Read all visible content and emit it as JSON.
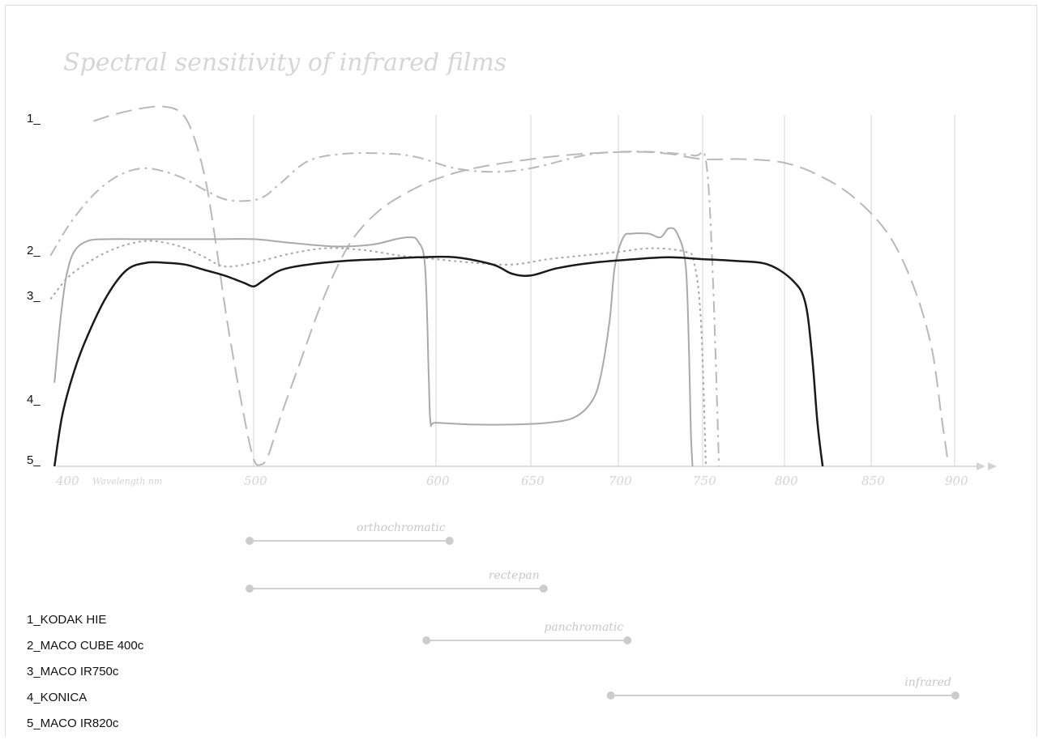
{
  "chart_data": {
    "type": "line",
    "title": "Spectral sensitivity of infrared films",
    "xlabel": "Wavelength nm",
    "x_ticks": [
      400,
      500,
      600,
      650,
      700,
      750,
      800,
      850,
      900
    ],
    "xlim": [
      400,
      925
    ],
    "ylim": [
      0,
      100
    ],
    "y_axis_labels": [
      "1_",
      "2_",
      "3_",
      "4_",
      "5_"
    ],
    "grid": true,
    "series": [
      {
        "name": "KODAK HIE",
        "key": "1",
        "style": "long-dash",
        "color": "#b9b9b9",
        "x": [
          418,
          430,
          443,
          453,
          461,
          466,
          471,
          476,
          481,
          487,
          495,
          500,
          504,
          508,
          515,
          525,
          535,
          545,
          555,
          568,
          583,
          600,
          620,
          650,
          680,
          710,
          730,
          750,
          775,
          800,
          820,
          840,
          860,
          875,
          886,
          892,
          896
        ],
        "y": [
          95,
          97,
          98.5,
          99,
          98,
          95,
          88,
          77,
          60,
          38,
          14,
          2,
          0.5,
          3,
          14,
          28,
          42,
          54,
          63,
          70,
          75,
          79,
          82,
          84.5,
          86,
          86.5,
          86,
          84.5,
          84.5,
          83.5,
          80,
          74,
          64,
          50,
          33,
          14,
          1
        ]
      },
      {
        "name": "MACO CUBE 400c",
        "key": "2",
        "style": "dash-dot",
        "color": "#b9b9b9",
        "x": [
          396,
          405,
          415,
          425,
          435,
          445,
          455,
          465,
          475,
          485,
          495,
          505,
          515,
          530,
          550,
          575,
          590,
          610,
          630,
          650,
          680,
          700,
          720,
          745,
          752,
          756,
          760
        ],
        "y": [
          58,
          66,
          73,
          78,
          81,
          82,
          81,
          79,
          76,
          73.5,
          73,
          74,
          78,
          84,
          86,
          86,
          85,
          82,
          81,
          82,
          85.5,
          86.5,
          86.5,
          85.5,
          84,
          55,
          0
        ]
      },
      {
        "name": "MACO IR750c",
        "key": "3",
        "style": "dotted",
        "color": "#a9a9a9",
        "x": [
          396,
          405,
          415,
          425,
          435,
          445,
          455,
          465,
          475,
          485,
          500,
          520,
          540,
          560,
          580,
          600,
          620,
          640,
          660,
          680,
          700,
          720,
          740,
          745,
          749,
          752
        ],
        "y": [
          46,
          52,
          56,
          59,
          61,
          62,
          61.5,
          60,
          57.5,
          55,
          56,
          58.5,
          60,
          59.5,
          58,
          57,
          56,
          55.5,
          57,
          58,
          59,
          60,
          59,
          56,
          40,
          0
        ]
      },
      {
        "name": "KONICA",
        "key": "4",
        "style": "solid-thin",
        "color": "#a9a9a9",
        "x": [
          398,
          401,
          404,
          408,
          415,
          425,
          440,
          460,
          480,
          500,
          520,
          545,
          565,
          578,
          585,
          590,
          594,
          596,
          597,
          600,
          620,
          640,
          660,
          675,
          685,
          690,
          695,
          698,
          703,
          708,
          718,
          725,
          730,
          735,
          740,
          742,
          743,
          744
        ],
        "y": [
          23,
          40,
          52,
          59,
          62,
          62.5,
          62.5,
          62.5,
          62.5,
          62.5,
          61.5,
          60.5,
          61,
          62.5,
          63,
          62,
          55,
          25,
          12,
          12,
          11.5,
          11.5,
          12,
          13.5,
          18,
          25,
          40,
          55,
          63,
          64,
          64,
          63,
          65.5,
          64,
          55,
          30,
          10,
          0
        ]
      },
      {
        "name": "MACO IR820c",
        "key": "5",
        "style": "solid-thick",
        "color": "#1a1a1a",
        "x": [
          398,
          402,
          408,
          415,
          425,
          435,
          445,
          455,
          465,
          475,
          485,
          495,
          500,
          505,
          515,
          530,
          550,
          570,
          590,
          610,
          630,
          640,
          650,
          665,
          685,
          710,
          730,
          750,
          770,
          790,
          805,
          812,
          816,
          819,
          822
        ],
        "y": [
          0,
          14,
          26,
          36,
          47,
          54,
          56,
          56,
          55.5,
          54,
          52.5,
          50.5,
          49.5,
          51,
          54,
          55.5,
          56.5,
          57,
          57.5,
          57.5,
          55.5,
          53,
          52.5,
          54.5,
          56,
          57,
          57.5,
          57,
          56.5,
          55.5,
          51,
          45,
          30,
          12,
          0
        ]
      }
    ],
    "ranges": [
      {
        "label": "orthochromatic",
        "start": 500,
        "end": 605
      },
      {
        "label": "rectepan",
        "start": 500,
        "end": 655
      },
      {
        "label": "panchromatic",
        "start": 597,
        "end": 703
      },
      {
        "label": "infrared",
        "start": 698,
        "end": 898
      }
    ]
  },
  "legend": [
    "1_KODAK HIE",
    "2_MACO CUBE 400c",
    "3_MACO IR750c",
    "4_KONICA",
    "5_MACO IR820c"
  ]
}
